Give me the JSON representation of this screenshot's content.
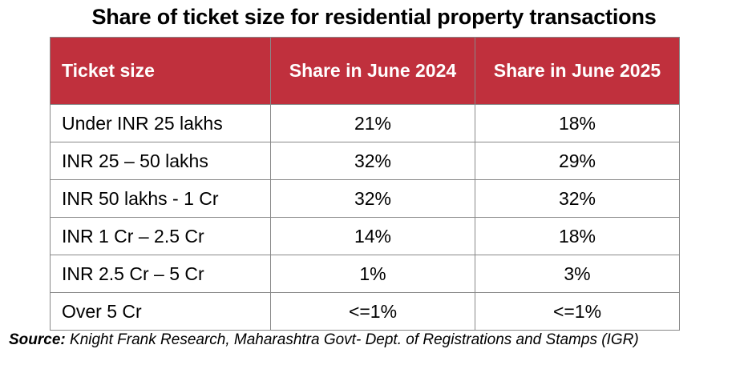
{
  "chart_data": {
    "type": "table",
    "title": "Share of ticket size for residential property transactions",
    "columns": [
      "Ticket size",
      "Share in June 2024",
      "Share in June 2025"
    ],
    "rows": [
      [
        "Under INR 25 lakhs",
        "21%",
        "18%"
      ],
      [
        "INR 25 – 50 lakhs",
        "32%",
        "29%"
      ],
      [
        "INR 50 lakhs - 1 Cr",
        "32%",
        "32%"
      ],
      [
        "INR 1 Cr – 2.5 Cr",
        "14%",
        "18%"
      ],
      [
        "INR 2.5 Cr – 5 Cr",
        "1%",
        "3%"
      ],
      [
        "Over 5 Cr",
        "<=1%",
        "<=1%"
      ]
    ],
    "source_label": "Source:",
    "source_text": " Knight Frank Research, Maharashtra Govt- Dept. of Registrations and Stamps (IGR)"
  },
  "colors": {
    "header_bg": "#c0303d",
    "header_text": "#ffffff",
    "border": "#888888"
  }
}
